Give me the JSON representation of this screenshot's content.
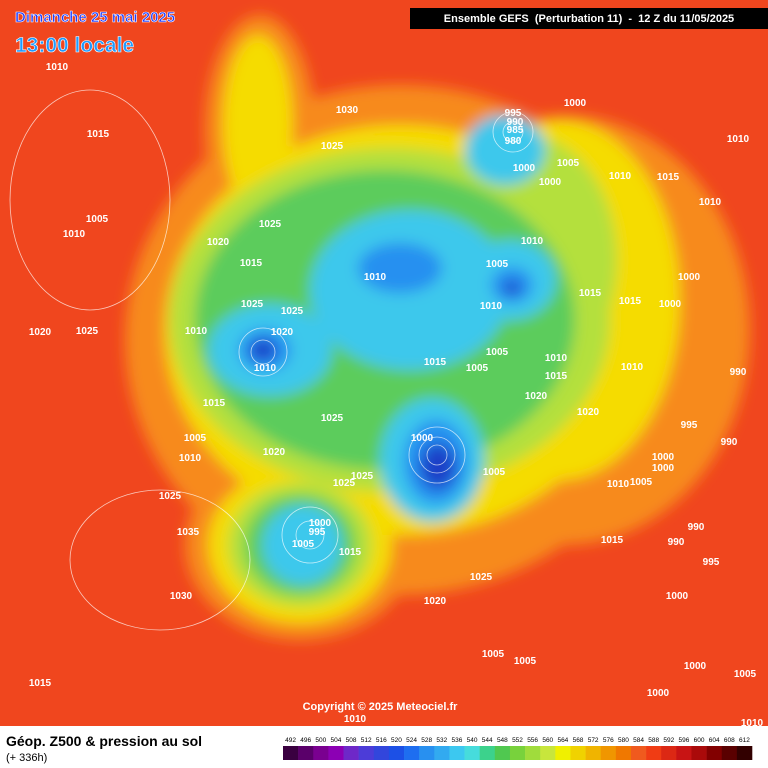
{
  "header": {
    "title": "Dimanche 25 mai 2025",
    "time": "13:00 locale",
    "run": "Ensemble GEFS  (Perturbation 11)  -  12 Z du 11/05/2025"
  },
  "map": {
    "copyright": "Copyright © 2025 Meteociel.fr",
    "isobar_labels": [
      1010,
      1015,
      1030,
      1025,
      995,
      990,
      985,
      980,
      1000,
      1005,
      1000,
      1000,
      1010,
      1015,
      1010,
      1010,
      1005,
      1010,
      1020,
      1025,
      1015,
      1010,
      1005,
      1010,
      1010,
      1000,
      1000,
      1015,
      1015,
      1020,
      1025,
      1025,
      1025,
      1010,
      1020,
      1010,
      1015,
      1005,
      1010,
      1005,
      1015,
      1010,
      990,
      1020,
      1020,
      1015,
      1025,
      1005,
      1010,
      1020,
      1000,
      1005,
      995,
      990,
      1000,
      1000,
      1005,
      1010,
      1025,
      1025,
      1025,
      1035,
      1000,
      995,
      1005,
      1015,
      990,
      990,
      995,
      1015,
      1025,
      1020,
      1030,
      1000,
      1005,
      1005,
      1005,
      1000,
      1000,
      1015,
      1010,
      1010
    ]
  },
  "footer": {
    "title": "Géop. Z500 & pression au sol",
    "range": "(+ 336h)"
  },
  "legend": {
    "labels": [
      492,
      496,
      500,
      504,
      508,
      512,
      516,
      520,
      524,
      528,
      532,
      536,
      540,
      544,
      548,
      552,
      556,
      560,
      564,
      568,
      572,
      576,
      580,
      584,
      588,
      592,
      596,
      600,
      604,
      608,
      612
    ],
    "colors": [
      "#3a0040",
      "#5a006a",
      "#7a0090",
      "#8c00b4",
      "#6e28c8",
      "#4c3cd8",
      "#3246dc",
      "#1c50e6",
      "#1e6ef0",
      "#2890f0",
      "#32aaf0",
      "#3cc8f0",
      "#46dcdc",
      "#3cd28c",
      "#50c850",
      "#78d23c",
      "#a0dc3c",
      "#c8e63c",
      "#f0f000",
      "#f0d200",
      "#f0b400",
      "#f09600",
      "#f07800",
      "#f05a1e",
      "#f03c14",
      "#dc2814",
      "#c81414",
      "#aa0a0a",
      "#820000",
      "#5a0000",
      "#320000"
    ]
  }
}
